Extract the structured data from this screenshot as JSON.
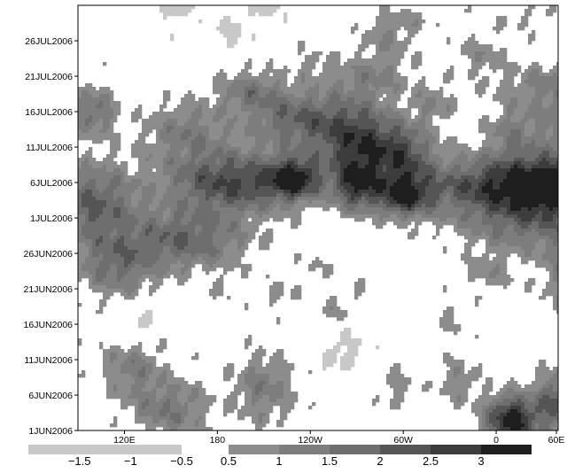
{
  "chart_data": {
    "type": "heatmap",
    "title": "",
    "xlabel": "",
    "ylabel": "",
    "x_range": [
      90,
      400
    ],
    "x_ticks": [
      {
        "value": 120,
        "label": "120E"
      },
      {
        "value": 180,
        "label": "180"
      },
      {
        "value": 240,
        "label": "120W"
      },
      {
        "value": 300,
        "label": "60W"
      },
      {
        "value": 360,
        "label": "0"
      },
      {
        "value": 420,
        "label": "60E"
      }
    ],
    "y_range": [
      "2006-06-01",
      "2006-07-31"
    ],
    "y_ticks": [
      {
        "value": "2006-06-01",
        "label": "1JUN2006"
      },
      {
        "value": "2006-06-06",
        "label": "6JUN2006"
      },
      {
        "value": "2006-06-11",
        "label": "11JUN2006"
      },
      {
        "value": "2006-06-16",
        "label": "16JUN2006"
      },
      {
        "value": "2006-06-21",
        "label": "21JUN2006"
      },
      {
        "value": "2006-06-26",
        "label": "26JUN2006"
      },
      {
        "value": "2006-07-01",
        "label": "1JUL2006"
      },
      {
        "value": "2006-07-06",
        "label": "6JUL2006"
      },
      {
        "value": "2006-07-11",
        "label": "11JUL2006"
      },
      {
        "value": "2006-07-16",
        "label": "16JUL2006"
      },
      {
        "value": "2006-07-21",
        "label": "21JUL2006"
      },
      {
        "value": "2006-07-26",
        "label": "26JUL2006"
      }
    ],
    "contour_levels": [
      -1.5,
      -1,
      -0.5,
      0.5,
      1,
      1.5,
      2,
      2.5,
      3
    ],
    "colorbar": {
      "negative": [
        {
          "from": -2.0,
          "to": -0.5,
          "color": "#c8c8c8"
        }
      ],
      "positive": [
        {
          "from": 0.5,
          "to": 1.0,
          "color": "#8c8c8c"
        },
        {
          "from": 1.0,
          "to": 1.5,
          "color": "#7d7d7d"
        },
        {
          "from": 1.5,
          "to": 2.0,
          "color": "#6e6e6e"
        },
        {
          "from": 2.0,
          "to": 2.5,
          "color": "#555555"
        },
        {
          "from": 2.5,
          "to": 3.0,
          "color": "#3c3c3c"
        },
        {
          "from": 3.0,
          "to": 3.5,
          "color": "#1e1e1e"
        }
      ],
      "labels": [
        {
          "value": -1.5,
          "label": "−1.5"
        },
        {
          "value": -1,
          "label": "−1"
        },
        {
          "value": -0.5,
          "label": "−0.5"
        },
        {
          "value": 0.5,
          "label": "0.5"
        },
        {
          "value": 1,
          "label": "1"
        },
        {
          "value": 1.5,
          "label": "1.5"
        },
        {
          "value": 2,
          "label": "2"
        },
        {
          "value": 2.5,
          "label": "2.5"
        },
        {
          "value": 3,
          "label": "3"
        }
      ]
    },
    "features": [
      {
        "lon": 150,
        "t": 3,
        "amp": 1.4,
        "sx": 18,
        "sy": 3
      },
      {
        "lon": 125,
        "t": 9,
        "amp": 1.2,
        "sx": 14,
        "sy": 3
      },
      {
        "lon": 210,
        "t": 6,
        "amp": 1.3,
        "sx": 14,
        "sy": 3.5
      },
      {
        "lon": 335,
        "t": 7,
        "amp": 0.9,
        "sx": 10,
        "sy": 2.5
      },
      {
        "lon": 295,
        "t": 6,
        "amp": 0.8,
        "sx": 8,
        "sy": 2
      },
      {
        "lon": 370,
        "t": 1.5,
        "amp": 3.4,
        "sx": 12,
        "sy": 2.5
      },
      {
        "lon": 400,
        "t": 4,
        "amp": 2.2,
        "sx": 10,
        "sy": 3
      },
      {
        "lon": 220,
        "t": 19,
        "amp": 0.7,
        "sx": 10,
        "sy": 1.5
      },
      {
        "lon": 255,
        "t": 17,
        "amp": 0.6,
        "sx": 8,
        "sy": 1.5
      },
      {
        "lon": 330,
        "t": 16,
        "amp": 0.6,
        "sx": 8,
        "sy": 2
      },
      {
        "lon": 260,
        "t": 11,
        "amp": -0.8,
        "sx": 10,
        "sy": 2
      },
      {
        "lon": 130,
        "t": 15,
        "amp": -0.7,
        "sx": 8,
        "sy": 2
      },
      {
        "lon": 410,
        "t": 22,
        "amp": 1.3,
        "sx": 14,
        "sy": 4
      },
      {
        "lon": 445,
        "t": 17,
        "amp": 1.1,
        "sx": 10,
        "sy": 3
      },
      {
        "lon": 355,
        "t": 22,
        "amp": 0.8,
        "sx": 10,
        "sy": 2
      },
      {
        "lon": 245,
        "t": 23,
        "amp": 0.5,
        "sx": 8,
        "sy": 1.5
      },
      {
        "lon": 270,
        "t": 20,
        "amp": 0.5,
        "sx": 6,
        "sy": 1.5
      },
      {
        "lon": 185,
        "t": 20,
        "amp": 0.5,
        "sx": 6,
        "sy": 1.5
      },
      {
        "lon": 115,
        "t": 23,
        "amp": 1.5,
        "sx": 18,
        "sy": 3
      },
      {
        "lon": 160,
        "t": 27,
        "amp": 1.9,
        "sx": 28,
        "sy": 3
      },
      {
        "lon": 100,
        "t": 32,
        "amp": 2.0,
        "sx": 20,
        "sy": 4
      },
      {
        "lon": 190,
        "t": 35,
        "amp": 2.5,
        "sx": 30,
        "sy": 3
      },
      {
        "lon": 230,
        "t": 35.5,
        "amp": 2.6,
        "sx": 12,
        "sy": 2
      },
      {
        "lon": 270,
        "t": 34.5,
        "amp": 2.3,
        "sx": 10,
        "sy": 2.5
      },
      {
        "lon": 300,
        "t": 33,
        "amp": 2.5,
        "sx": 12,
        "sy": 2
      },
      {
        "lon": 360,
        "t": 34.5,
        "amp": 2.3,
        "sx": 40,
        "sy": 3
      },
      {
        "lon": 410,
        "t": 35,
        "amp": 2.6,
        "sx": 30,
        "sy": 3
      },
      {
        "lon": 380,
        "t": 29,
        "amp": 1.4,
        "sx": 30,
        "sy": 3
      },
      {
        "lon": 270,
        "t": 41,
        "amp": 2.5,
        "sx": 18,
        "sy": 4
      },
      {
        "lon": 300,
        "t": 39,
        "amp": 2.0,
        "sx": 14,
        "sy": 3
      },
      {
        "lon": 230,
        "t": 44,
        "amp": 1.8,
        "sx": 22,
        "sy": 3
      },
      {
        "lon": 160,
        "t": 42,
        "amp": 1.3,
        "sx": 20,
        "sy": 3
      },
      {
        "lon": 100,
        "t": 45,
        "amp": 1.6,
        "sx": 10,
        "sy": 2.5
      },
      {
        "lon": 420,
        "t": 44,
        "amp": 1.8,
        "sx": 24,
        "sy": 3
      },
      {
        "lon": 370,
        "t": 42,
        "amp": 1.0,
        "sx": 12,
        "sy": 3
      },
      {
        "lon": 200,
        "t": 48,
        "amp": 1.2,
        "sx": 15,
        "sy": 2
      },
      {
        "lon": 280,
        "t": 50,
        "amp": 1.0,
        "sx": 20,
        "sy": 2
      },
      {
        "lon": 400,
        "t": 49,
        "amp": 1.0,
        "sx": 30,
        "sy": 2
      },
      {
        "lon": 320,
        "t": 46,
        "amp": 0.9,
        "sx": 10,
        "sy": 2
      },
      {
        "lon": 350,
        "t": 53,
        "amp": 0.8,
        "sx": 12,
        "sy": 2
      },
      {
        "lon": 290,
        "t": 55,
        "amp": 0.8,
        "sx": 12,
        "sy": 2
      },
      {
        "lon": 190,
        "t": 56,
        "amp": -0.7,
        "sx": 8,
        "sy": 2
      },
      {
        "lon": 240,
        "t": 52,
        "amp": 0.6,
        "sx": 10,
        "sy": 1.5
      },
      {
        "lon": 150,
        "t": 60,
        "amp": -0.8,
        "sx": 10,
        "sy": 2
      },
      {
        "lon": 210,
        "t": 60,
        "amp": -0.7,
        "sx": 10,
        "sy": 1.5
      },
      {
        "lon": 300,
        "t": 58,
        "amp": 0.6,
        "sx": 15,
        "sy": 1.5
      },
      {
        "lon": 380,
        "t": 58,
        "amp": 0.5,
        "sx": 20,
        "sy": 1.5
      }
    ]
  }
}
